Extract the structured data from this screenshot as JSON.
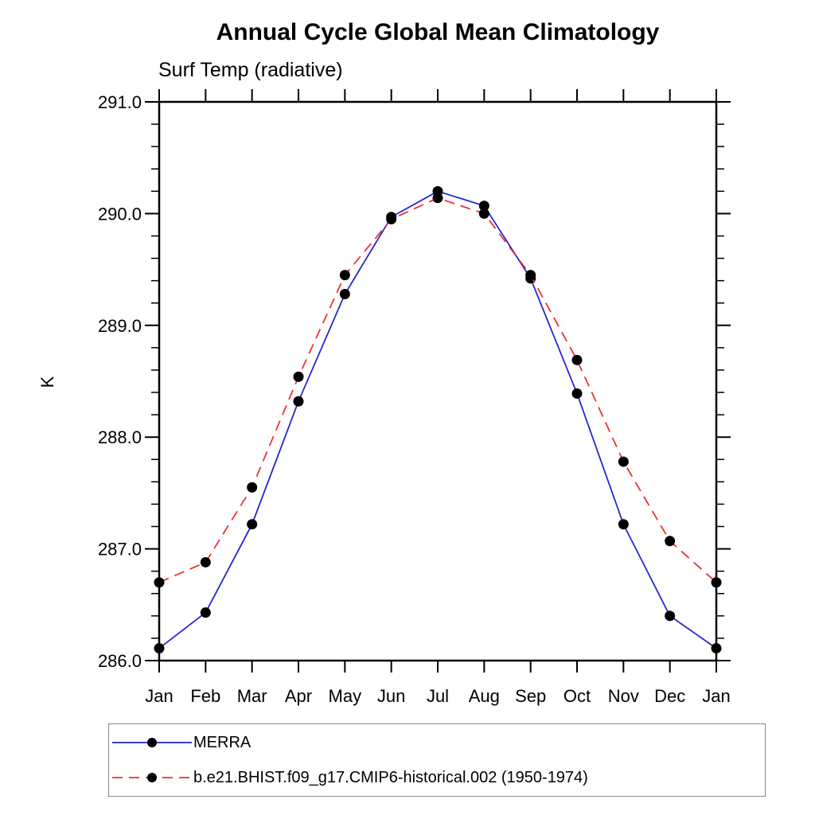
{
  "page": {
    "background": "#ffffff"
  },
  "chart_data": {
    "type": "line",
    "title": "Annual Cycle Global Mean Climatology",
    "subtitle": "Surf Temp (radiative)",
    "ylabel": "K",
    "xlabel": "",
    "ylim": [
      286.0,
      291.0
    ],
    "yticks": [
      286.0,
      287.0,
      288.0,
      289.0,
      290.0,
      291.0
    ],
    "ytick_labels": [
      "286.0",
      "287.0",
      "288.0",
      "289.0",
      "290.0",
      "291.0"
    ],
    "y_minor_step": 0.2,
    "categories": [
      "Jan",
      "Feb",
      "Mar",
      "Apr",
      "May",
      "Jun",
      "Jul",
      "Aug",
      "Sep",
      "Oct",
      "Nov",
      "Dec",
      "Jan"
    ],
    "grid": false,
    "legend_position": "bottom-left",
    "axis_color": "#000000",
    "marker_color": "#000000",
    "marker_radius": 6.5,
    "series": [
      {
        "name": "MERRA",
        "color": "#2222cc",
        "line_style": "solid",
        "marker": "circle",
        "values": [
          286.11,
          286.43,
          287.22,
          288.32,
          289.28,
          289.97,
          290.2,
          290.07,
          289.42,
          288.39,
          287.22,
          286.4,
          286.11
        ]
      },
      {
        "name": "b.e21.BHIST.f09_g17.CMIP6-historical.002 (1950-1974)",
        "color": "#ee2c2c",
        "line_style": "dashed",
        "marker": "circle",
        "values": [
          286.7,
          286.88,
          287.55,
          288.54,
          289.45,
          289.95,
          290.14,
          290.0,
          289.45,
          288.69,
          287.78,
          287.07,
          286.7
        ]
      }
    ]
  }
}
